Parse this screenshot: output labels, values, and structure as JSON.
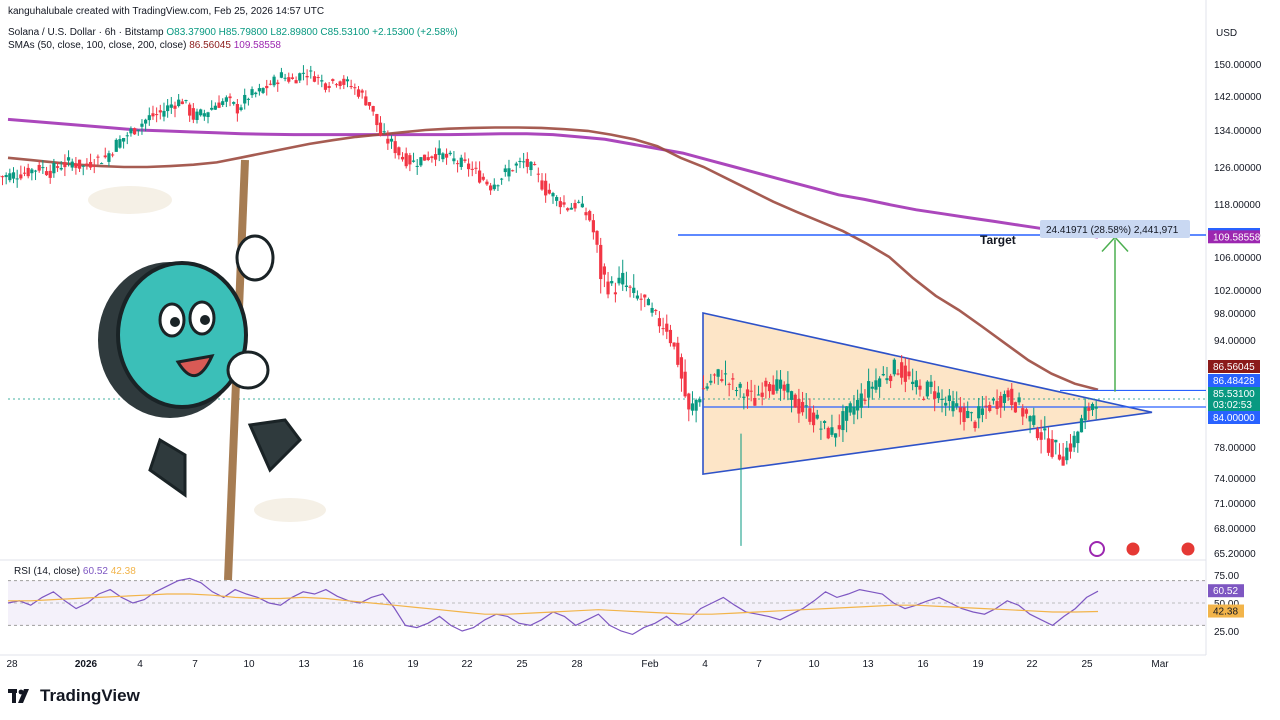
{
  "credit": "kanguhalubale created with TradingView.com, Feb 25, 2026 14:57 UTC",
  "currency": "USD",
  "legend": {
    "symbol": "Solana / U.S. Dollar · 6h · Bitstamp",
    "ohlc": "O83.37900 H85.79800 L82.89800 C85.53100 +2.15300 (+2.58%)",
    "sma_label": "SMAs (50, close, 100, close, 200, close)",
    "sma_val_1": "86.56045",
    "sma_val_2": "109.58558"
  },
  "rsi_legend": {
    "label": "RSI (14, close)",
    "v1": "60.52",
    "v2": "42.38"
  },
  "brand": "TradingView",
  "annotations": {
    "target": "Target",
    "measure": "24.41971 (28.58%) 2,441,971"
  },
  "colors": {
    "up": "#089981",
    "down": "#f23645",
    "sma100": "#9c4a3f",
    "sma200": "#9c27b0",
    "triangle_fill": "#fde5c7",
    "triangle_line": "#2e52c8",
    "arrow": "#4caf50",
    "rsi": "#7e57c2",
    "rsi_ma": "#f2b44a"
  },
  "chart_data": {
    "type": "candlestick",
    "title": "Solana / U.S. Dollar · 6h · Bitstamp",
    "ylim": [
      65.2,
      152
    ],
    "y_ticks": [
      "150.00000",
      "142.00000",
      "134.00000",
      "126.00000",
      "118.00000",
      "110.00000",
      "106.00000",
      "102.00000",
      "98.00000",
      "94.00000",
      "90.00000",
      "78.00000",
      "74.00000",
      "71.00000",
      "68.00000",
      "65.20000"
    ],
    "x_ticks": [
      "28",
      "2026",
      "4",
      "7",
      "10",
      "13",
      "16",
      "19",
      "22",
      "25",
      "28",
      "Feb",
      "4",
      "7",
      "10",
      "13",
      "16",
      "19",
      "22",
      "25",
      "Mar"
    ],
    "price_labels": [
      {
        "text": "110.00000",
        "value": 110.0,
        "color": "#2962ff"
      },
      {
        "text": "109.58558",
        "value": 109.58558,
        "color": "#9c27b0"
      },
      {
        "text": "86.56045",
        "value": 86.56045,
        "color": "#8b1a1a"
      },
      {
        "text": "86.48428",
        "value": 86.48428,
        "color": "#2962ff"
      },
      {
        "text": "85.53100",
        "value": 85.531,
        "color": "#089981"
      },
      {
        "text": "03:02:53",
        "value": 84.9,
        "color": "#089981"
      },
      {
        "text": "84.00000",
        "value": 84.0,
        "color": "#2962ff"
      }
    ],
    "close_path": [
      124,
      124.5,
      125,
      126,
      125,
      126.5,
      127,
      126,
      127.5,
      128,
      131,
      133,
      135,
      137,
      138,
      140,
      141,
      137,
      138,
      140,
      141,
      139,
      142,
      143,
      145,
      147,
      146,
      148,
      147,
      145,
      146,
      145,
      143,
      140,
      133,
      131,
      128,
      127,
      128,
      129,
      128,
      127,
      126,
      124,
      122,
      124,
      126,
      127,
      125,
      121,
      119,
      117,
      118,
      114,
      104,
      102,
      103,
      101,
      100,
      97,
      96,
      91,
      83,
      86,
      88,
      89,
      87,
      86,
      85,
      88,
      87,
      86,
      84,
      83,
      81,
      80,
      82,
      84,
      86,
      88,
      89,
      90,
      88,
      86,
      87,
      85,
      84,
      83,
      82,
      84,
      85,
      86,
      84,
      82,
      80,
      78,
      77,
      79,
      83,
      85.53
    ],
    "sma200": [
      136.5,
      136,
      135.5,
      135,
      134.5,
      134,
      133.8,
      133.6,
      133.4,
      133.2,
      133.1,
      133,
      133,
      133,
      133,
      133,
      133,
      133,
      133.1,
      133.2,
      133.2,
      133,
      132.5,
      132,
      131,
      130,
      129,
      127.5,
      126,
      124.5,
      123,
      121.5,
      120,
      119,
      117.8,
      116.5,
      115.5,
      114.5,
      113.5,
      112.5,
      111.5,
      110.6,
      109.6
    ],
    "sma100": [
      128,
      127.5,
      127,
      126.5,
      126.2,
      126,
      126,
      126.2,
      126.5,
      127,
      128,
      129,
      130,
      131,
      131.8,
      132.5,
      133,
      133.5,
      134,
      134.3,
      134.5,
      134.6,
      134.6,
      134.5,
      134.2,
      133.8,
      133,
      132,
      130.5,
      128,
      126,
      123.5,
      121,
      118.5,
      116,
      113.5,
      111,
      108.5,
      106,
      103.5,
      101,
      98.5,
      96,
      93.5,
      91,
      89,
      87.5,
      86.6
    ],
    "sma50_last": 86.56045,
    "rsi": {
      "ylim": [
        20,
        80
      ],
      "ticks": [
        "75.00",
        "50.00",
        "25.00"
      ],
      "bands": [
        70,
        30
      ],
      "last_rsi": 60.52,
      "last_ma": 42.38,
      "rsi_values": [
        50,
        52,
        48,
        55,
        60,
        52,
        45,
        50,
        58,
        62,
        55,
        50,
        53,
        60,
        65,
        70,
        72,
        68,
        60,
        55,
        62,
        58,
        55,
        50,
        48,
        55,
        60,
        58,
        62,
        56,
        52,
        50,
        55,
        58,
        46,
        30,
        28,
        32,
        38,
        30,
        25,
        28,
        35,
        40,
        38,
        32,
        30,
        35,
        42,
        38,
        30,
        35,
        40,
        30,
        25,
        22,
        28,
        32,
        38,
        30,
        35,
        45,
        50,
        55,
        48,
        42,
        40,
        38,
        35,
        40,
        45,
        52,
        60,
        55,
        58,
        62,
        60,
        58,
        50,
        45,
        48,
        52,
        55,
        50,
        45,
        42,
        40,
        45,
        52,
        48,
        40,
        35,
        30,
        38,
        45,
        55,
        60.52
      ],
      "ma_values": [
        52,
        52,
        53,
        54,
        55,
        56,
        57,
        58,
        58,
        57,
        55,
        54,
        54,
        55,
        54,
        52,
        50,
        48,
        46,
        44,
        42,
        40,
        40,
        41,
        42,
        43,
        44,
        43,
        42,
        41,
        40,
        40,
        41,
        42,
        43,
        44,
        45,
        46,
        47,
        48,
        48,
        47,
        46,
        45,
        44,
        43,
        42,
        42,
        42.38
      ]
    },
    "pattern": {
      "triangle": [
        {
          "x": "Feb 3",
          "y": 98
        },
        {
          "x": "Feb 3",
          "y": 74.5
        },
        {
          "x": "Feb 27",
          "y": 83.2
        }
      ],
      "breakout_target": 110.0,
      "levels": [
        110.0,
        86.48428,
        84.0
      ]
    }
  }
}
